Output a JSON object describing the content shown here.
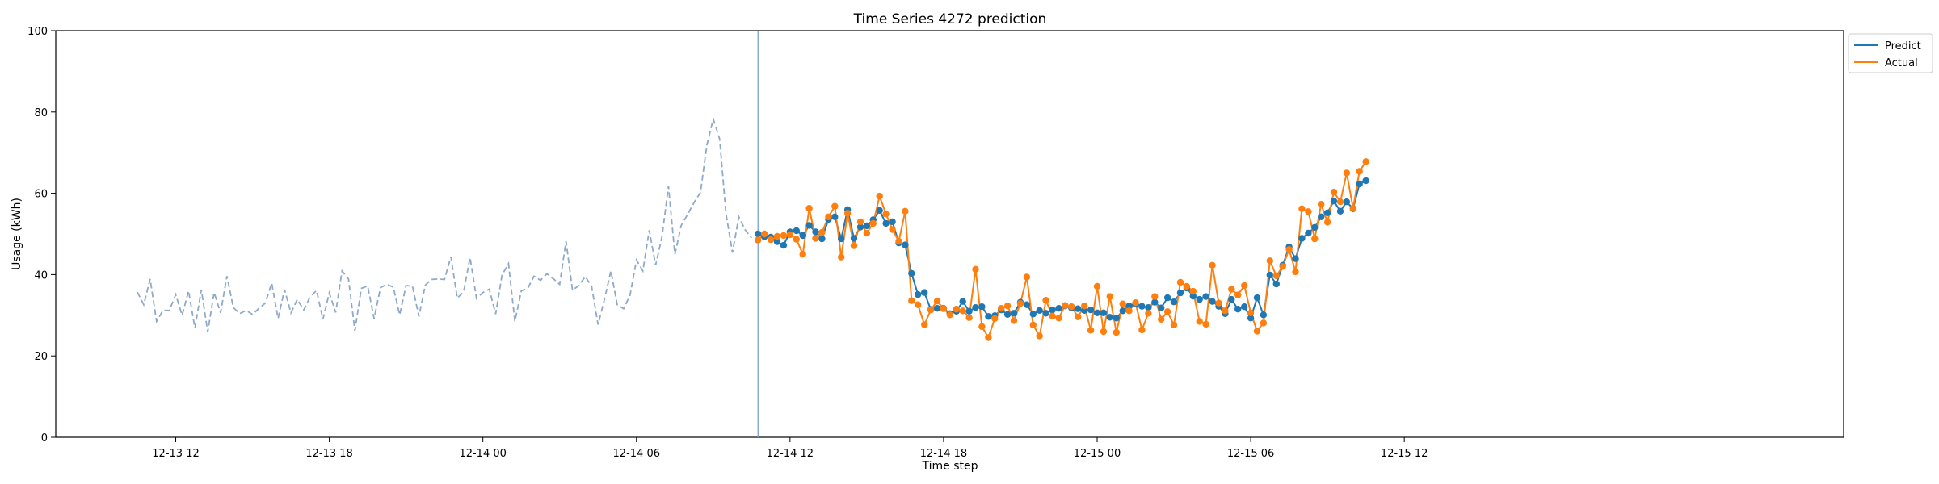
{
  "chart_data": {
    "type": "line",
    "title": "Time Series 4272 prediction",
    "xlabel": "Time step",
    "ylabel": "Usage (kWh)",
    "ylim": [
      0,
      100
    ],
    "yticks": [
      0,
      20,
      40,
      60,
      80,
      100
    ],
    "x_tick_labels": [
      "12-13 12",
      "12-13 18",
      "12-14 00",
      "12-14 06",
      "12-14 12",
      "12-14 18",
      "12-15 00",
      "12-15 06",
      "12-15 12"
    ],
    "x_unit": "15-minute steps",
    "x_start": "12-13 10:30",
    "forecast_start": "12-14 11:00",
    "grid": false,
    "legend_position": "top-right outside",
    "colors": {
      "predict": "#1f77b4",
      "actual": "#ff7f0e",
      "history": "#8fa9c8",
      "divider": "#7b9fd1"
    },
    "history": {
      "name": "",
      "style": "dashed",
      "values": [
        35.7,
        32.6,
        38.9,
        28.5,
        31.2,
        31.2,
        35.1,
        30.0,
        36.0,
        26.8,
        36.3,
        25.9,
        35.6,
        30.6,
        39.6,
        31.9,
        30.4,
        31.2,
        30.2,
        31.7,
        33.0,
        37.9,
        29.2,
        36.3,
        30.6,
        33.9,
        31.3,
        34.5,
        36.1,
        29.0,
        35.5,
        30.7,
        40.9,
        38.9,
        26.2,
        36.6,
        37.2,
        29.2,
        36.8,
        37.6,
        36.9,
        30.1,
        37.3,
        37.1,
        29.7,
        37.4,
        38.8,
        38.9,
        38.8,
        44.4,
        34.2,
        35.8,
        44.2,
        34.1,
        35.6,
        36.4,
        30.3,
        39.9,
        42.7,
        28.5,
        36.0,
        36.6,
        39.6,
        38.6,
        40.2,
        39.0,
        37.6,
        48.2,
        36.2,
        37.3,
        39.5,
        37.1,
        27.7,
        33.9,
        40.9,
        32.6,
        31.6,
        34.9,
        43.6,
        40.9,
        50.9,
        42.3,
        49.3,
        61.8,
        45.0,
        52.1,
        54.8,
        57.7,
        60.2,
        71.8,
        78.3,
        73.4,
        55.0,
        45.4,
        54.2,
        51.0,
        49.0
      ]
    },
    "series": [
      {
        "name": "Predict",
        "marker": "circle",
        "values": [
          50.0,
          49.3,
          49.2,
          48.1,
          47.2,
          50.5,
          50.8,
          49.6,
          52.1,
          50.5,
          48.8,
          53.6,
          54.2,
          48.8,
          56.0,
          48.9,
          51.7,
          52.0,
          53.5,
          55.8,
          52.6,
          53.0,
          47.8,
          47.3,
          40.3,
          35.1,
          35.6,
          31.4,
          31.7,
          31.7,
          30.4,
          31.0,
          33.4,
          31.0,
          31.9,
          32.1,
          29.7,
          29.9,
          31.3,
          30.2,
          30.5,
          33.2,
          32.6,
          30.3,
          31.2,
          30.5,
          31.3,
          31.7,
          32.3,
          31.8,
          31.6,
          31.2,
          31.3,
          30.6,
          30.6,
          29.5,
          29.3,
          31.1,
          32.3,
          32.8,
          32.2,
          31.9,
          33.2,
          31.8,
          34.3,
          33.3,
          35.5,
          36.7,
          34.7,
          33.9,
          34.6,
          33.4,
          32.2,
          30.4,
          33.9,
          31.5,
          32.1,
          29.3,
          34.3,
          30.1,
          39.9,
          37.7,
          42.3,
          46.8,
          43.9,
          48.9,
          50.2,
          51.6,
          54.2,
          55.2,
          58.1,
          55.6,
          57.9,
          56.2,
          62.3,
          63.1
        ]
      },
      {
        "name": "Actual",
        "marker": "circle",
        "values": [
          48.5,
          50.0,
          48.6,
          49.4,
          49.6,
          49.8,
          48.7,
          45.0,
          56.3,
          48.9,
          50.4,
          54.2,
          56.8,
          44.3,
          55.1,
          47.1,
          53.0,
          50.2,
          52.6,
          59.3,
          54.9,
          51.1,
          48.2,
          55.6,
          33.6,
          32.6,
          27.7,
          31.3,
          33.5,
          31.6,
          30.1,
          31.5,
          31.1,
          29.4,
          41.3,
          27.2,
          24.5,
          29.2,
          31.7,
          32.3,
          28.7,
          32.9,
          39.4,
          27.6,
          24.9,
          33.7,
          29.8,
          29.3,
          32.4,
          32.1,
          29.6,
          32.3,
          26.3,
          37.1,
          26.0,
          34.6,
          25.8,
          32.8,
          31.1,
          33.1,
          26.4,
          30.5,
          34.6,
          29.0,
          30.9,
          27.6,
          38.1,
          37.1,
          35.9,
          28.5,
          27.8,
          42.3,
          33.0,
          31.1,
          36.4,
          35.0,
          37.3,
          30.6,
          26.1,
          28.1,
          43.4,
          39.7,
          42.0,
          46.2,
          40.7,
          56.2,
          55.5,
          48.8,
          57.3,
          52.9,
          60.3,
          57.9,
          65.0,
          56.3,
          65.4,
          67.8
        ]
      }
    ]
  },
  "legend": {
    "predict_label": "Predict",
    "actual_label": "Actual"
  }
}
